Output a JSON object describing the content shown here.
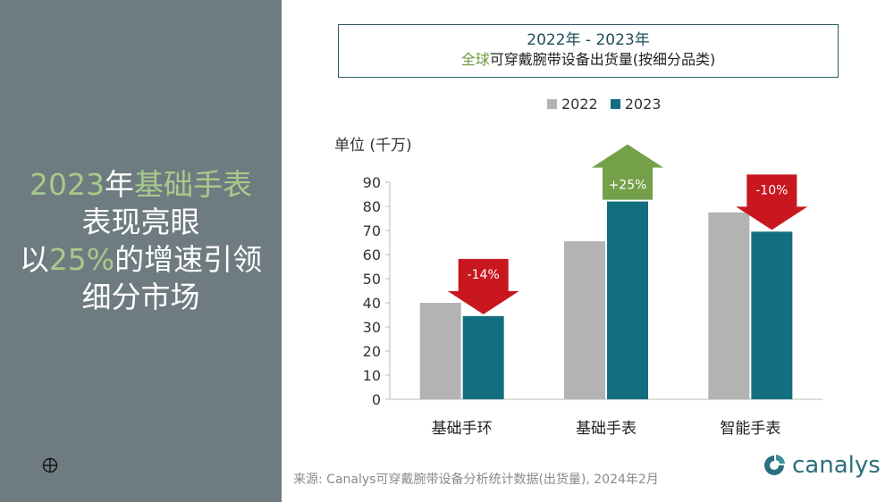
{
  "headline": {
    "line1_num": "2023",
    "line1_mid": "年",
    "line1_hl": "基础手表",
    "line2": "表现亮眼",
    "line3_pre": "以",
    "line3_hl": "25%",
    "line3_post": "的增速引领",
    "line4": "细分市场"
  },
  "colors": {
    "bg_left": "#6e7b80",
    "series_2022": "#b3b3b3",
    "series_2023": "#136f80",
    "arrow_down": "#c8171f",
    "arrow_up": "#74a04a",
    "highlight_green": "#a8c98a"
  },
  "chart_data": {
    "type": "bar",
    "title_line1": "2022年 - 2023年",
    "title_line2_hl": "全球",
    "title_line2_rest": "可穿戴腕带设备出货量(按细分品类)",
    "ylabel": "单位 (千万)",
    "xlabel": "",
    "ylim": [
      0,
      90
    ],
    "yticks": [
      "0",
      "10",
      "20",
      "30",
      "40",
      "50",
      "60",
      "70",
      "80",
      "90"
    ],
    "categories": [
      "基础手环",
      "基础手表",
      "智能手表"
    ],
    "series": [
      {
        "name": "2022",
        "values": [
          40,
          65.5,
          77.5
        ]
      },
      {
        "name": "2023",
        "values": [
          34.5,
          82,
          69.5
        ]
      }
    ],
    "annotations": [
      {
        "category": "基础手环",
        "label": "-14%",
        "direction": "down"
      },
      {
        "category": "基础手表",
        "label": "+25%",
        "direction": "up"
      },
      {
        "category": "智能手表",
        "label": "-10%",
        "direction": "down"
      }
    ],
    "legend_position": "top",
    "grid": false
  },
  "source": "来源: Canalys可穿戴腕带设备分析统计数据(出货量), 2024年2月",
  "logo": {
    "text": "canalys",
    "icon": "canalys-logo-icon"
  }
}
